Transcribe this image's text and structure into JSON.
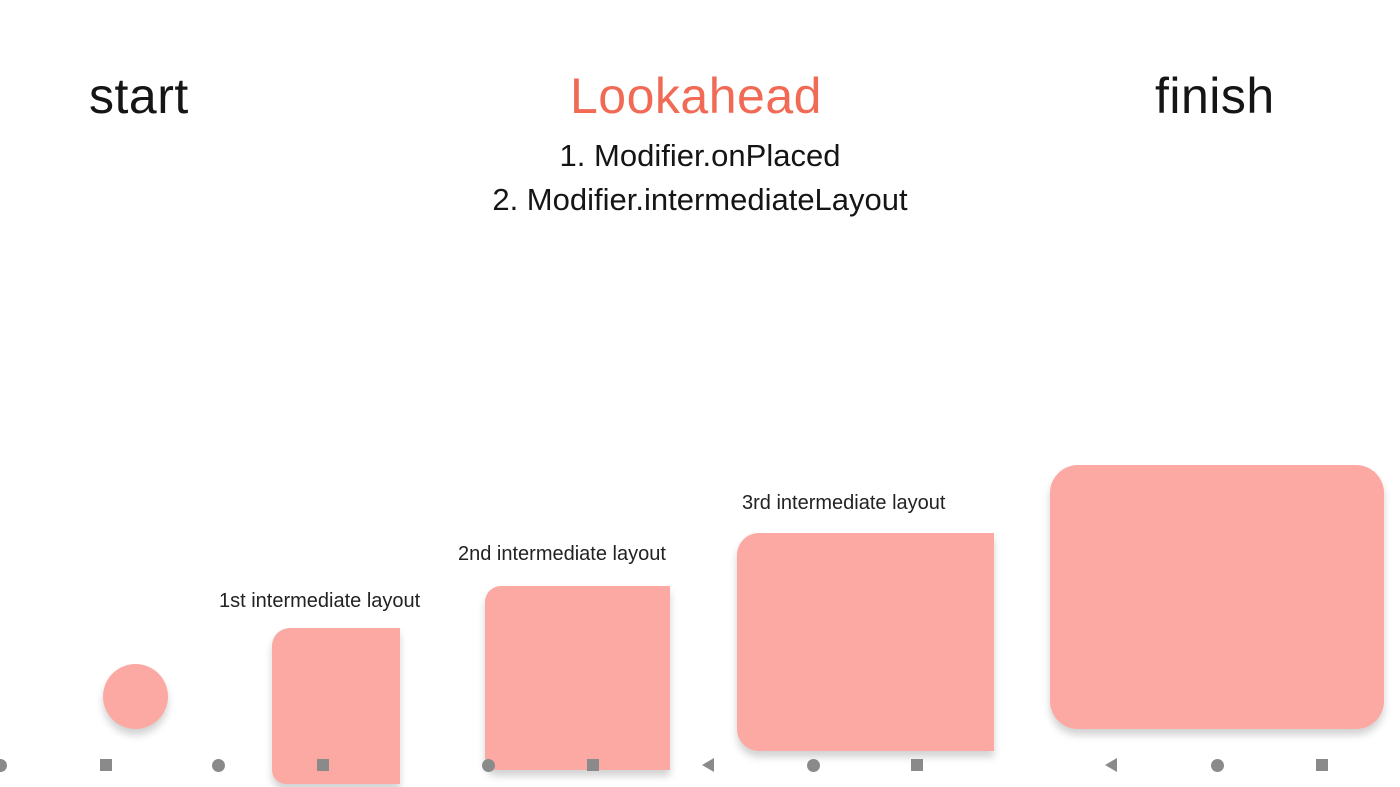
{
  "headings": {
    "start": "start",
    "lookahead": "Lookahead",
    "finish": "finish"
  },
  "steps": [
    "1. Modifier.onPlaced",
    "2. Modifier.intermediateLayout"
  ],
  "captions": {
    "first": "1st intermediate layout",
    "second": "2nd intermediate layout",
    "third": "3rd intermediate layout"
  },
  "colors": {
    "accent": "#f06a55",
    "shape_fill": "#fca9a4",
    "text": "#151515",
    "nav_icon": "#8a8a8a"
  },
  "nav_icons": [
    "circle-icon",
    "square-icon",
    "back-triangle-icon"
  ]
}
